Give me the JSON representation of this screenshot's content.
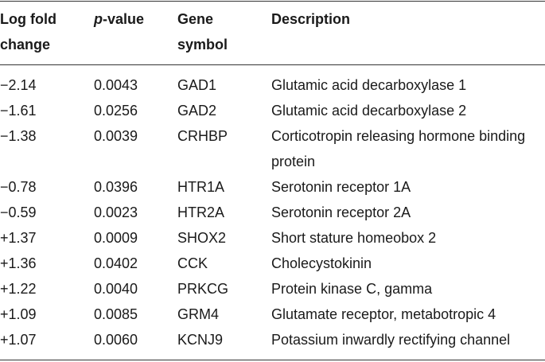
{
  "headers": {
    "log_fold_change": [
      "Log fold",
      "change"
    ],
    "p_value_italic": "p",
    "p_value_rest": "-value",
    "gene_symbol": [
      "Gene",
      "symbol"
    ],
    "description": "Description"
  },
  "rows": [
    {
      "log_fc": "−2.14",
      "p": "0.0043",
      "gene": "GAD1",
      "desc": "Glutamic acid decarboxylase 1"
    },
    {
      "log_fc": "−1.61",
      "p": "0.0256",
      "gene": "GAD2",
      "desc": "Glutamic acid decarboxylase 2"
    },
    {
      "log_fc": "−1.38",
      "p": "0.0039",
      "gene": "CRHBP",
      "desc": "Corticotropin releasing hormone binding protein"
    },
    {
      "log_fc": "−0.78",
      "p": "0.0396",
      "gene": "HTR1A",
      "desc": "Serotonin receptor 1A"
    },
    {
      "log_fc": "−0.59",
      "p": "0.0023",
      "gene": "HTR2A",
      "desc": "Serotonin receptor 2A"
    },
    {
      "log_fc": "+1.37",
      "p": "0.0009",
      "gene": "SHOX2",
      "desc": "Short stature homeobox 2"
    },
    {
      "log_fc": "+1.36",
      "p": "0.0402",
      "gene": "CCK",
      "desc": "Cholecystokinin"
    },
    {
      "log_fc": "+1.22",
      "p": "0.0040",
      "gene": "PRKCG",
      "desc": "Protein kinase C, gamma"
    },
    {
      "log_fc": "+1.09",
      "p": "0.0085",
      "gene": "GRM4",
      "desc": "Glutamate receptor, metabotropic 4"
    },
    {
      "log_fc": "+1.07",
      "p": "0.0060",
      "gene": "KCNJ9",
      "desc": "Potassium inwardly rectifying channel"
    }
  ]
}
